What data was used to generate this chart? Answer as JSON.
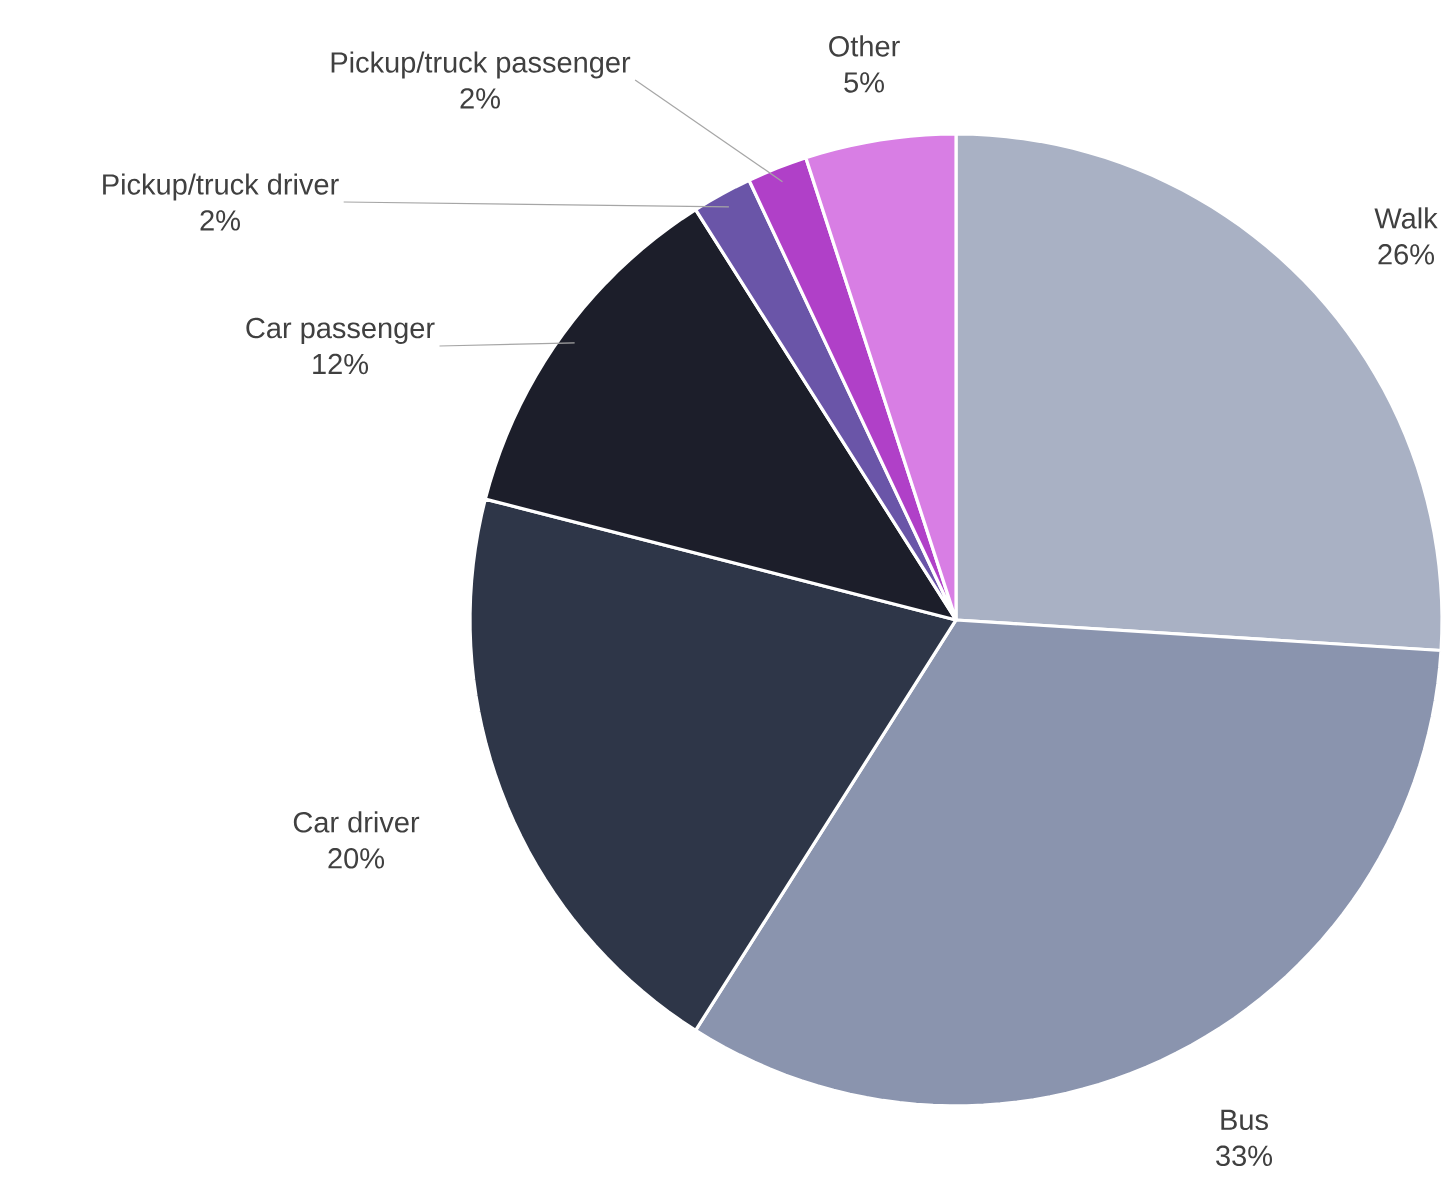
{
  "chart_data": {
    "type": "pie",
    "categories": [
      "Walk",
      "Bus",
      "Car driver",
      "Car passenger",
      "Pickup/truck driver",
      "Pickup/truck passenger",
      "Other"
    ],
    "values": [
      26,
      33,
      20,
      12,
      2,
      2,
      5
    ],
    "value_labels": [
      "26%",
      "33%",
      "20%",
      "12%",
      "2%",
      "2%",
      "5%"
    ],
    "colors": [
      "#a9b1c4",
      "#8a94ae",
      "#2e3648",
      "#1c1e2a",
      "#6a55a8",
      "#b040c8",
      "#d87ee4"
    ]
  }
}
